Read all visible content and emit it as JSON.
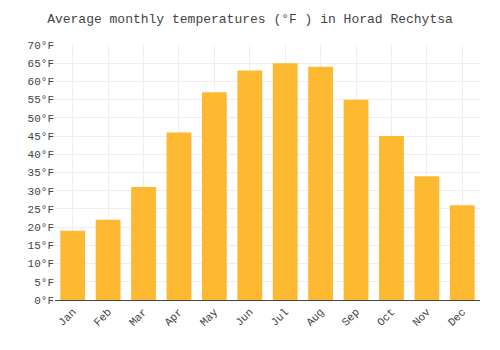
{
  "chart_data": {
    "type": "bar",
    "title": "Average monthly temperatures (°F ) in Horad Rechytsa",
    "categories": [
      "Jan",
      "Feb",
      "Mar",
      "Apr",
      "May",
      "Jun",
      "Jul",
      "Aug",
      "Sep",
      "Oct",
      "Nov",
      "Dec"
    ],
    "values": [
      19,
      22,
      31,
      46,
      57,
      63,
      65,
      64,
      55,
      45,
      34,
      26
    ],
    "color": "#FDB931",
    "ylim": [
      0,
      70
    ],
    "yticks": [
      {
        "value": 0,
        "label": "0°F"
      },
      {
        "value": 5,
        "label": "5°F"
      },
      {
        "value": 10,
        "label": "10°F"
      },
      {
        "value": 15,
        "label": "15°F"
      },
      {
        "value": 20,
        "label": "20°F"
      },
      {
        "value": 25,
        "label": "25°F"
      },
      {
        "value": 30,
        "label": "30°F"
      },
      {
        "value": 35,
        "label": "35°F"
      },
      {
        "value": 40,
        "label": "40°F"
      },
      {
        "value": 45,
        "label": "45°F"
      },
      {
        "value": 50,
        "label": "50°F"
      },
      {
        "value": 55,
        "label": "55°F"
      },
      {
        "value": 60,
        "label": "60°F"
      },
      {
        "value": 65,
        "label": "65°F"
      },
      {
        "value": 70,
        "label": "70°F"
      }
    ],
    "grid": true
  }
}
